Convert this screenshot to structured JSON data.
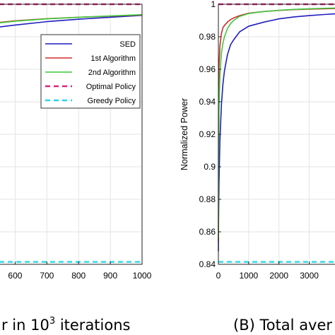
{
  "chart_data": [
    {
      "type": "line",
      "caption": {
        "prefix": "r in 10",
        "sup": "3",
        "suffix": " iterations"
      },
      "x_ticks": [
        "600",
        "700",
        "800",
        "900",
        "1000"
      ],
      "xlim": [
        550,
        1000
      ],
      "ylim": [
        0.84,
        1.0
      ],
      "grid": true,
      "legend": {
        "placement": "right"
      },
      "series": [
        {
          "name": "SED",
          "color": "#1f1fbf",
          "dash": "solid",
          "x": [
            550,
            600,
            700,
            800,
            900,
            1000
          ],
          "y": [
            0.986,
            0.9872,
            0.9893,
            0.9908,
            0.992,
            0.9932
          ]
        },
        {
          "name": "1st Algorithm",
          "color": "#d42a2a",
          "dash": "solid",
          "x": [
            550,
            600,
            700,
            800,
            900,
            1000
          ],
          "y": [
            0.9888,
            0.9898,
            0.9911,
            0.992,
            0.9927,
            0.9934
          ]
        },
        {
          "name": "2nd Algorithm",
          "color": "#3cc83c",
          "dash": "solid",
          "x": [
            550,
            600,
            700,
            800,
            900,
            1000
          ],
          "y": [
            0.9885,
            0.9896,
            0.991,
            0.992,
            0.9928,
            0.9936
          ]
        },
        {
          "name": "Optimal Policy",
          "color": "#e0217a",
          "dash": "dashed",
          "x": [
            550,
            1000
          ],
          "y": [
            1.0,
            1.0
          ]
        },
        {
          "name": "Greedy Policy",
          "color": "#27d7e8",
          "dash": "dashed",
          "x": [
            550,
            1000
          ],
          "y": [
            0.8415,
            0.8415
          ]
        }
      ]
    },
    {
      "type": "line",
      "caption": {
        "text": "(B) Total aver"
      },
      "ylabel": "Normalized Power",
      "x_ticks": [
        "0",
        "1000",
        "2000",
        "3000"
      ],
      "y_ticks": [
        "0.84",
        "0.86",
        "0.88",
        "0.9",
        "0.92",
        "0.94",
        "0.96",
        "0.98",
        "1"
      ],
      "xlim": [
        0,
        4200
      ],
      "ylim": [
        0.84,
        1.0
      ],
      "grid": true,
      "series": [
        {
          "name": "SED",
          "color": "#1f1fbf",
          "dash": "solid",
          "x": [
            0,
            5,
            20,
            50,
            100,
            150,
            200,
            300,
            400,
            500,
            700,
            1000,
            1500,
            2000,
            2500,
            3000,
            3500,
            4200
          ],
          "y": [
            0.848,
            0.866,
            0.89,
            0.916,
            0.938,
            0.951,
            0.959,
            0.969,
            0.975,
            0.978,
            0.983,
            0.9865,
            0.989,
            0.991,
            0.9922,
            0.993,
            0.9937,
            0.9945
          ]
        },
        {
          "name": "1st Algorithm",
          "color": "#d42a2a",
          "dash": "solid",
          "x": [
            0,
            5,
            20,
            50,
            100,
            150,
            200,
            300,
            400,
            500,
            700,
            1000,
            1500,
            2000,
            2500,
            3000,
            3500,
            4200
          ],
          "y": [
            0.854,
            0.935,
            0.962,
            0.974,
            0.982,
            0.9855,
            0.987,
            0.989,
            0.9905,
            0.9915,
            0.993,
            0.9945,
            0.9955,
            0.9962,
            0.9967,
            0.997,
            0.9972,
            0.9975
          ]
        },
        {
          "name": "2nd Algorithm",
          "color": "#3cc83c",
          "dash": "solid",
          "x": [
            0,
            5,
            20,
            50,
            100,
            150,
            200,
            300,
            400,
            500,
            700,
            1000,
            1500,
            2000,
            2500,
            3000,
            3500,
            4200
          ],
          "y": [
            0.856,
            0.9,
            0.934,
            0.956,
            0.97,
            0.976,
            0.98,
            0.985,
            0.988,
            0.99,
            0.9925,
            0.9943,
            0.9955,
            0.9963,
            0.9968,
            0.9972,
            0.9975,
            0.9978
          ]
        },
        {
          "name": "Optimal Policy",
          "color": "#e0217a",
          "dash": "dashed",
          "x": [
            0,
            4200
          ],
          "y": [
            1.0,
            1.0
          ]
        },
        {
          "name": "Greedy Policy",
          "color": "#27d7e8",
          "dash": "dashed",
          "x": [
            0,
            4200
          ],
          "y": [
            0.8415,
            0.8415
          ]
        }
      ]
    }
  ]
}
